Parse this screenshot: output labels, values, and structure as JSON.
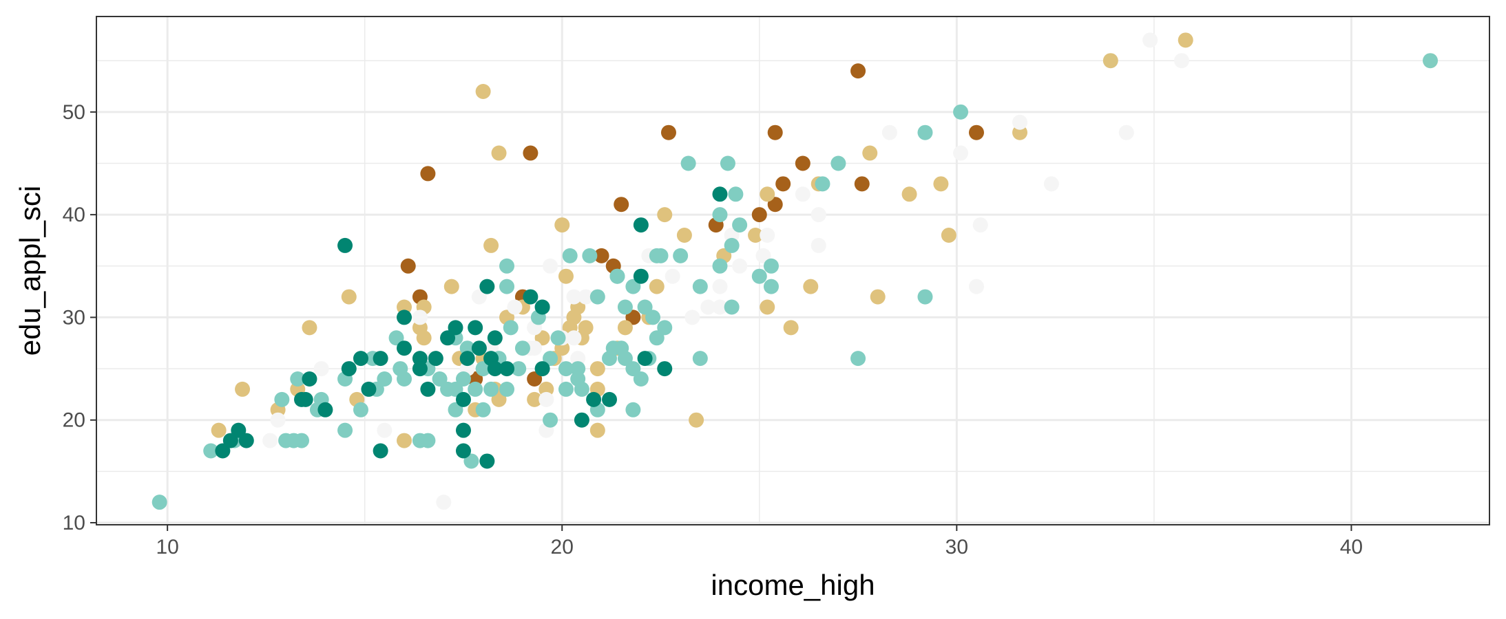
{
  "chart_data": {
    "type": "scatter",
    "title": "",
    "xlabel": "income_high",
    "ylabel": "edu_appl_sci",
    "xlim": [
      8.2,
      43.5
    ],
    "ylim": [
      9.8,
      59.3
    ],
    "x_ticks": [
      10,
      20,
      30,
      40
    ],
    "y_ticks": [
      10,
      20,
      30,
      40,
      50
    ],
    "grid": true,
    "legend": "none",
    "colors": {
      "dark_brown": "#a6611a",
      "tan": "#dfc27d",
      "white": "#f5f5f5",
      "light_teal": "#80cdc1",
      "dark_teal": "#018571"
    },
    "groups": [
      {
        "color": "dark_brown",
        "points": [
          [
            27.5,
            54
          ],
          [
            22.7,
            48
          ],
          [
            25.4,
            48
          ],
          [
            30.5,
            48
          ],
          [
            19.2,
            46
          ],
          [
            16.6,
            44
          ],
          [
            26.1,
            45
          ],
          [
            25.6,
            43
          ],
          [
            27.6,
            43
          ],
          [
            21.5,
            41
          ],
          [
            25.4,
            41
          ],
          [
            25.0,
            40
          ],
          [
            23.9,
            39
          ],
          [
            21.0,
            36
          ],
          [
            21.3,
            35
          ],
          [
            16.1,
            35
          ],
          [
            16.4,
            32
          ],
          [
            19.0,
            32
          ],
          [
            21.8,
            30
          ],
          [
            17.8,
            24
          ],
          [
            19.3,
            24
          ]
        ]
      },
      {
        "color": "tan",
        "points": [
          [
            18.0,
            52
          ],
          [
            35.8,
            57
          ],
          [
            33.9,
            55
          ],
          [
            31.6,
            48
          ],
          [
            27.8,
            46
          ],
          [
            18.4,
            46
          ],
          [
            29.6,
            43
          ],
          [
            26.5,
            43
          ],
          [
            28.8,
            42
          ],
          [
            25.2,
            42
          ],
          [
            22.6,
            40
          ],
          [
            24.9,
            38
          ],
          [
            23.1,
            38
          ],
          [
            29.8,
            38
          ],
          [
            24.1,
            36
          ],
          [
            20.0,
            39
          ],
          [
            18.2,
            37
          ],
          [
            17.2,
            33
          ],
          [
            14.6,
            32
          ],
          [
            28.0,
            32
          ],
          [
            26.3,
            33
          ],
          [
            22.4,
            33
          ],
          [
            25.8,
            29
          ],
          [
            25.2,
            31
          ],
          [
            13.6,
            29
          ],
          [
            16.0,
            31
          ],
          [
            16.5,
            31
          ],
          [
            16.4,
            29
          ],
          [
            20.3,
            30
          ],
          [
            21.6,
            29
          ],
          [
            18.6,
            30
          ],
          [
            19.0,
            31
          ],
          [
            19.5,
            28
          ],
          [
            20.0,
            27
          ],
          [
            20.6,
            29
          ],
          [
            21.4,
            27
          ],
          [
            20.9,
            25
          ],
          [
            20.9,
            23
          ],
          [
            20.9,
            19
          ],
          [
            23.4,
            20
          ],
          [
            19.3,
            22
          ],
          [
            19.6,
            23
          ],
          [
            18.3,
            23
          ],
          [
            18.4,
            22
          ],
          [
            17.8,
            21
          ],
          [
            16.0,
            18
          ],
          [
            14.8,
            22
          ],
          [
            12.8,
            21
          ],
          [
            11.3,
            19
          ],
          [
            11.9,
            23
          ],
          [
            13.3,
            23
          ],
          [
            16.5,
            28
          ],
          [
            19.8,
            26
          ],
          [
            20.2,
            29
          ],
          [
            20.5,
            28
          ],
          [
            18.0,
            26
          ],
          [
            17.4,
            26
          ],
          [
            20.4,
            31
          ],
          [
            20.1,
            34
          ],
          [
            22.2,
            30
          ]
        ]
      },
      {
        "color": "white",
        "points": [
          [
            34.9,
            57
          ],
          [
            35.7,
            55
          ],
          [
            31.6,
            49
          ],
          [
            34.3,
            48
          ],
          [
            28.3,
            48
          ],
          [
            30.1,
            46
          ],
          [
            32.4,
            43
          ],
          [
            26.1,
            42
          ],
          [
            26.5,
            40
          ],
          [
            30.6,
            39
          ],
          [
            26.5,
            37
          ],
          [
            30.5,
            33
          ],
          [
            25.2,
            38
          ],
          [
            24.5,
            35
          ],
          [
            24.0,
            33
          ],
          [
            23.7,
            31
          ],
          [
            23.3,
            30
          ],
          [
            24.0,
            31
          ],
          [
            22.8,
            34
          ],
          [
            22.2,
            36
          ],
          [
            20.6,
            32
          ],
          [
            20.3,
            32
          ],
          [
            19.7,
            35
          ],
          [
            20.3,
            28
          ],
          [
            20.0,
            28
          ],
          [
            20.4,
            26
          ],
          [
            19.3,
            27
          ],
          [
            18.9,
            25
          ],
          [
            19.2,
            27
          ],
          [
            19.6,
            19
          ],
          [
            17.0,
            12
          ],
          [
            15.5,
            19
          ],
          [
            12.8,
            20
          ],
          [
            12.6,
            18
          ],
          [
            13.9,
            25
          ],
          [
            15.3,
            26
          ],
          [
            16.0,
            27
          ],
          [
            16.4,
            30
          ],
          [
            16.7,
            26
          ],
          [
            17.6,
            25
          ],
          [
            18.2,
            27
          ],
          [
            18.8,
            31
          ],
          [
            19.3,
            29
          ],
          [
            19.6,
            22
          ],
          [
            16.6,
            23
          ],
          [
            17.9,
            32
          ],
          [
            24.3,
            38
          ],
          [
            25.1,
            36
          ]
        ]
      },
      {
        "color": "light_teal",
        "points": [
          [
            9.8,
            12
          ],
          [
            42.0,
            55
          ],
          [
            30.1,
            50
          ],
          [
            29.2,
            48
          ],
          [
            23.2,
            45
          ],
          [
            24.2,
            45
          ],
          [
            27.0,
            45
          ],
          [
            26.6,
            43
          ],
          [
            24.4,
            42
          ],
          [
            24.0,
            40
          ],
          [
            24.5,
            39
          ],
          [
            24.3,
            37
          ],
          [
            25.3,
            35
          ],
          [
            25.0,
            34
          ],
          [
            25.3,
            33
          ],
          [
            23.5,
            33
          ],
          [
            23.0,
            36
          ],
          [
            22.5,
            36
          ],
          [
            22.4,
            36
          ],
          [
            20.7,
            36
          ],
          [
            20.2,
            36
          ],
          [
            21.4,
            34
          ],
          [
            21.8,
            33
          ],
          [
            22.1,
            31
          ],
          [
            21.6,
            31
          ],
          [
            21.4,
            34
          ],
          [
            20.9,
            32
          ],
          [
            18.6,
            35
          ],
          [
            18.6,
            33
          ],
          [
            19.5,
            31
          ],
          [
            19.9,
            28
          ],
          [
            19.7,
            26
          ],
          [
            20.1,
            25
          ],
          [
            20.4,
            25
          ],
          [
            21.3,
            27
          ],
          [
            21.6,
            26
          ],
          [
            22.3,
            30
          ],
          [
            22.4,
            28
          ],
          [
            22.6,
            29
          ],
          [
            21.8,
            25
          ],
          [
            22.0,
            24
          ],
          [
            21.8,
            21
          ],
          [
            20.9,
            21
          ],
          [
            20.5,
            23
          ],
          [
            20.1,
            23
          ],
          [
            19.7,
            20
          ],
          [
            18.6,
            23
          ],
          [
            18.2,
            23
          ],
          [
            18.0,
            21
          ],
          [
            17.7,
            16
          ],
          [
            17.3,
            21
          ],
          [
            17.1,
            23
          ],
          [
            16.9,
            24
          ],
          [
            16.6,
            25
          ],
          [
            16.4,
            18
          ],
          [
            16.6,
            18
          ],
          [
            16.0,
            24
          ],
          [
            15.9,
            25
          ],
          [
            15.5,
            24
          ],
          [
            15.8,
            28
          ],
          [
            15.2,
            26
          ],
          [
            15.3,
            23
          ],
          [
            14.9,
            21
          ],
          [
            14.5,
            24
          ],
          [
            14.5,
            19
          ],
          [
            13.8,
            21
          ],
          [
            13.4,
            18
          ],
          [
            13.3,
            24
          ],
          [
            12.9,
            22
          ],
          [
            13.0,
            18
          ],
          [
            13.2,
            18
          ],
          [
            13.9,
            22
          ],
          [
            11.1,
            17
          ],
          [
            11.7,
            18
          ],
          [
            17.3,
            28
          ],
          [
            17.6,
            27
          ],
          [
            18.4,
            26
          ],
          [
            18.9,
            25
          ],
          [
            18.7,
            29
          ],
          [
            19.4,
            30
          ],
          [
            19.0,
            27
          ],
          [
            17.5,
            24
          ],
          [
            18.0,
            25
          ],
          [
            17.8,
            23
          ],
          [
            24.0,
            35
          ],
          [
            24.3,
            31
          ],
          [
            23.5,
            26
          ],
          [
            27.5,
            26
          ],
          [
            29.2,
            32
          ],
          [
            21.2,
            26
          ],
          [
            21.5,
            27
          ],
          [
            22.2,
            26
          ],
          [
            20.4,
            24
          ],
          [
            16.4,
            25
          ],
          [
            17.3,
            23
          ]
        ]
      },
      {
        "color": "dark_teal",
        "points": [
          [
            14.5,
            37
          ],
          [
            24.0,
            42
          ],
          [
            22.0,
            39
          ],
          [
            22.0,
            34
          ],
          [
            18.1,
            33
          ],
          [
            19.2,
            32
          ],
          [
            19.5,
            31
          ],
          [
            16.0,
            30
          ],
          [
            17.3,
            29
          ],
          [
            17.1,
            28
          ],
          [
            16.4,
            26
          ],
          [
            16.8,
            26
          ],
          [
            17.6,
            26
          ],
          [
            17.9,
            27
          ],
          [
            18.2,
            26
          ],
          [
            18.3,
            28
          ],
          [
            17.8,
            29
          ],
          [
            16.0,
            27
          ],
          [
            15.4,
            26
          ],
          [
            15.1,
            23
          ],
          [
            14.9,
            26
          ],
          [
            14.6,
            25
          ],
          [
            13.6,
            24
          ],
          [
            13.4,
            22
          ],
          [
            14.0,
            21
          ],
          [
            13.5,
            22
          ],
          [
            11.4,
            17
          ],
          [
            11.8,
            19
          ],
          [
            11.6,
            18
          ],
          [
            12.0,
            18
          ],
          [
            15.4,
            17
          ],
          [
            17.5,
            17
          ],
          [
            17.5,
            19
          ],
          [
            18.1,
            16
          ],
          [
            17.5,
            22
          ],
          [
            18.3,
            25
          ],
          [
            18.6,
            25
          ],
          [
            19.5,
            25
          ],
          [
            20.5,
            20
          ],
          [
            20.8,
            22
          ],
          [
            21.2,
            22
          ],
          [
            22.1,
            26
          ],
          [
            22.6,
            25
          ],
          [
            16.6,
            23
          ],
          [
            16.4,
            25
          ]
        ]
      }
    ]
  }
}
